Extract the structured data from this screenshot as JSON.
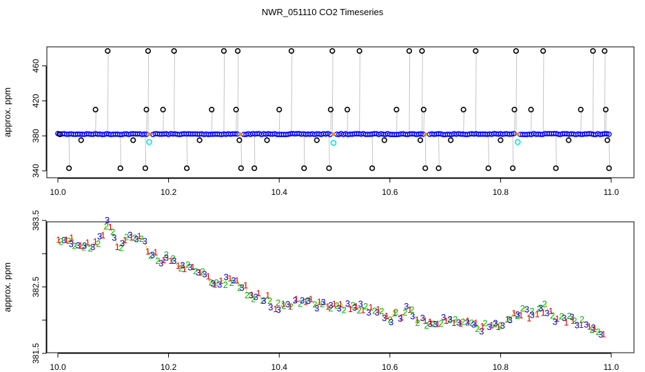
{
  "chart_data": [
    {
      "type": "scatter",
      "title": "NWR_051110  CO2 Timeseries",
      "xlabel": "",
      "ylabel": "approx. ppm",
      "xlim": [
        10.0,
        11.0
      ],
      "ylim": [
        340,
        480
      ],
      "xticks": [
        "10.0",
        "10.2",
        "10.4",
        "10.6",
        "10.8",
        "11.0"
      ],
      "yticks": [
        "340",
        "380",
        "420",
        "460"
      ],
      "baseline_ppm": 382,
      "calibration_points": [
        {
          "x": 10.165,
          "y": 373
        },
        {
          "x": 10.498,
          "y": 372
        },
        {
          "x": 10.831,
          "y": 373
        }
      ],
      "gaps": [
        10.165,
        10.33,
        10.498,
        10.665,
        10.831
      ],
      "spikes": [
        {
          "x": 10.003,
          "y": 382
        },
        {
          "x": 10.02,
          "y": 343
        },
        {
          "x": 10.042,
          "y": 375
        },
        {
          "x": 10.068,
          "y": 410
        },
        {
          "x": 10.09,
          "y": 477
        },
        {
          "x": 10.113,
          "y": 343
        },
        {
          "x": 10.136,
          "y": 375
        },
        {
          "x": 10.158,
          "y": 343
        },
        {
          "x": 10.16,
          "y": 410
        },
        {
          "x": 10.163,
          "y": 477
        },
        {
          "x": 10.19,
          "y": 410
        },
        {
          "x": 10.21,
          "y": 477
        },
        {
          "x": 10.233,
          "y": 343
        },
        {
          "x": 10.256,
          "y": 375
        },
        {
          "x": 10.278,
          "y": 410
        },
        {
          "x": 10.3,
          "y": 477
        },
        {
          "x": 10.322,
          "y": 410
        },
        {
          "x": 10.325,
          "y": 477
        },
        {
          "x": 10.328,
          "y": 375
        },
        {
          "x": 10.331,
          "y": 343
        },
        {
          "x": 10.355,
          "y": 343
        },
        {
          "x": 10.378,
          "y": 375
        },
        {
          "x": 10.4,
          "y": 410
        },
        {
          "x": 10.422,
          "y": 477
        },
        {
          "x": 10.445,
          "y": 343
        },
        {
          "x": 10.468,
          "y": 375
        },
        {
          "x": 10.49,
          "y": 343
        },
        {
          "x": 10.493,
          "y": 410
        },
        {
          "x": 10.496,
          "y": 477
        },
        {
          "x": 10.523,
          "y": 410
        },
        {
          "x": 10.545,
          "y": 477
        },
        {
          "x": 10.568,
          "y": 343
        },
        {
          "x": 10.59,
          "y": 375
        },
        {
          "x": 10.612,
          "y": 410
        },
        {
          "x": 10.635,
          "y": 477
        },
        {
          "x": 10.655,
          "y": 375
        },
        {
          "x": 10.658,
          "y": 477
        },
        {
          "x": 10.661,
          "y": 410
        },
        {
          "x": 10.664,
          "y": 343
        },
        {
          "x": 10.688,
          "y": 343
        },
        {
          "x": 10.71,
          "y": 375
        },
        {
          "x": 10.733,
          "y": 410
        },
        {
          "x": 10.755,
          "y": 477
        },
        {
          "x": 10.778,
          "y": 343
        },
        {
          "x": 10.8,
          "y": 375
        },
        {
          "x": 10.822,
          "y": 343
        },
        {
          "x": 10.825,
          "y": 410
        },
        {
          "x": 10.828,
          "y": 477
        },
        {
          "x": 10.855,
          "y": 410
        },
        {
          "x": 10.877,
          "y": 477
        },
        {
          "x": 10.9,
          "y": 343
        },
        {
          "x": 10.923,
          "y": 375
        },
        {
          "x": 10.945,
          "y": 410
        },
        {
          "x": 10.967,
          "y": 477
        },
        {
          "x": 10.988,
          "y": 477
        },
        {
          "x": 10.99,
          "y": 410
        },
        {
          "x": 10.993,
          "y": 375
        },
        {
          "x": 10.996,
          "y": 343
        }
      ],
      "colors": {
        "series": "#0000ff",
        "spike": "#000000",
        "calibration": "#00e5ee",
        "gap": "#ff8c00",
        "drop_line": "#888888"
      }
    },
    {
      "type": "scatter",
      "title": "",
      "xlabel": "",
      "ylabel": "approx. ppm",
      "xlim": [
        10.0,
        11.0
      ],
      "ylim": [
        381.5,
        383.5
      ],
      "xticks": [
        "10.0",
        "10.2",
        "10.4",
        "10.6",
        "10.8",
        "11.0"
      ],
      "yticks": [
        "381.5",
        "382.5",
        "383.5"
      ],
      "trend_x": [
        10.0,
        10.03,
        10.05,
        10.07,
        10.09,
        10.11,
        10.13,
        10.15,
        10.17,
        10.2,
        10.23,
        10.26,
        10.28,
        10.3,
        10.33,
        10.36,
        10.38,
        10.4,
        10.43,
        10.46,
        10.5,
        10.53,
        10.56,
        10.6,
        10.63,
        10.66,
        10.7,
        10.73,
        10.76,
        10.8,
        10.83,
        10.86,
        10.88,
        10.9,
        10.93,
        10.96,
        10.99
      ],
      "trend_y": [
        383.25,
        383.15,
        383.2,
        383.1,
        383.45,
        383.1,
        383.25,
        383.2,
        382.95,
        382.9,
        382.8,
        382.7,
        382.55,
        382.6,
        382.55,
        382.35,
        382.3,
        382.2,
        382.25,
        382.3,
        382.2,
        382.2,
        382.15,
        382.05,
        382.15,
        382.0,
        382.0,
        381.95,
        381.9,
        381.95,
        382.15,
        382.1,
        382.2,
        382.05,
        382.0,
        381.9,
        381.7
      ],
      "series": [
        {
          "name": "1",
          "color": "#dd0000"
        },
        {
          "name": "2",
          "color": "#00bb00"
        },
        {
          "name": "3",
          "color": "#0000dd"
        }
      ],
      "colors": {
        "line": "#c8a000"
      }
    }
  ]
}
